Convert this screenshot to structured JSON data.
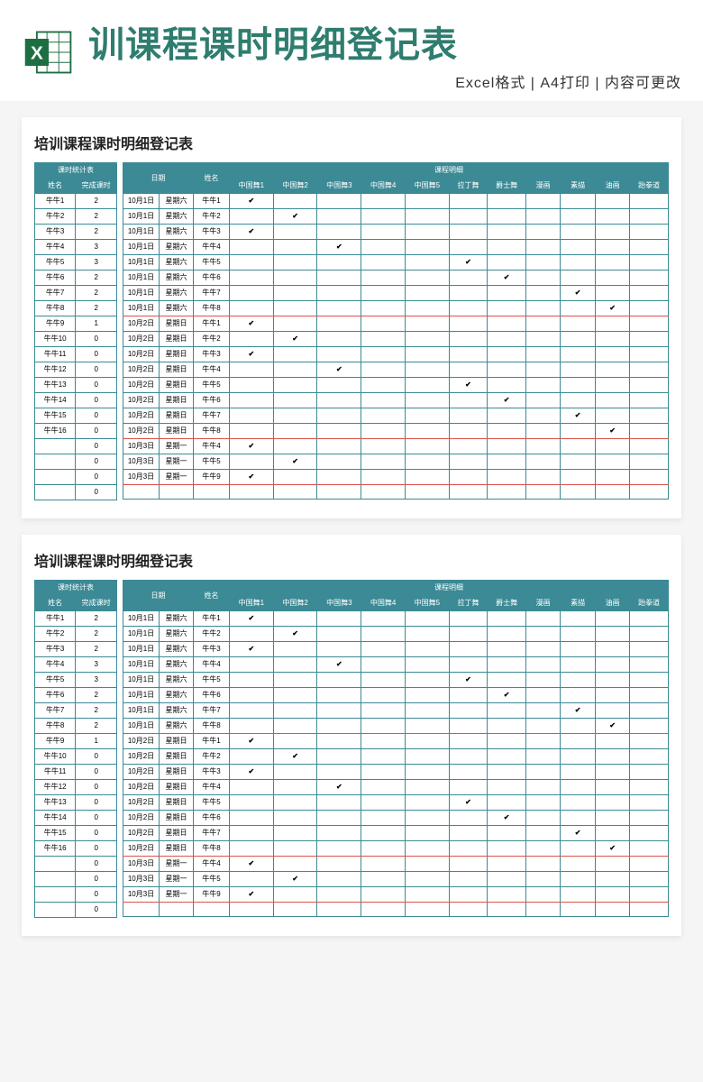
{
  "colors": {
    "header_bg": "#3b8a95",
    "header_fg": "#ffffff",
    "border": "#3b8a95",
    "accent_border": "#d9534f",
    "panel_bg": "#ffffff",
    "page_bg": "#f5f5f5",
    "title_color": "#2f7d6f",
    "excel_green": "#1d6f42"
  },
  "header": {
    "title": "训课程课时明细登记表",
    "subtitle": "Excel格式 | A4打印 | 内容可更改"
  },
  "sheet_title": "培训课程课时明细登记表",
  "summary": {
    "group_title": "课时统计表",
    "col_name": "姓名",
    "col_count": "完成课时",
    "rows": [
      {
        "name": "牛牛1",
        "count": "2"
      },
      {
        "name": "牛牛2",
        "count": "2"
      },
      {
        "name": "牛牛3",
        "count": "2"
      },
      {
        "name": "牛牛4",
        "count": "3"
      },
      {
        "name": "牛牛5",
        "count": "3"
      },
      {
        "name": "牛牛6",
        "count": "2"
      },
      {
        "name": "牛牛7",
        "count": "2"
      },
      {
        "name": "牛牛8",
        "count": "2"
      },
      {
        "name": "牛牛9",
        "count": "1"
      },
      {
        "name": "牛牛10",
        "count": "0"
      },
      {
        "name": "牛牛11",
        "count": "0"
      },
      {
        "name": "牛牛12",
        "count": "0"
      },
      {
        "name": "牛牛13",
        "count": "0"
      },
      {
        "name": "牛牛14",
        "count": "0"
      },
      {
        "name": "牛牛15",
        "count": "0"
      },
      {
        "name": "牛牛16",
        "count": "0"
      },
      {
        "name": "",
        "count": "0"
      },
      {
        "name": "",
        "count": "0"
      },
      {
        "name": "",
        "count": "0"
      },
      {
        "name": "",
        "count": "0"
      }
    ]
  },
  "detail": {
    "col_date": "日期",
    "col_name": "姓名",
    "group_courses": "课程明细",
    "courses": [
      "中国舞1",
      "中国舞2",
      "中国舞3",
      "中国舞4",
      "中国舞5",
      "拉丁舞",
      "爵士舞",
      "漫画",
      "素描",
      "油画",
      "跆拳道"
    ],
    "rows": [
      {
        "date": "10月1日",
        "day": "星期六",
        "name": "牛牛1",
        "marks": [
          true,
          false,
          false,
          false,
          false,
          false,
          false,
          false,
          false,
          false,
          false
        ],
        "red": false
      },
      {
        "date": "10月1日",
        "day": "星期六",
        "name": "牛牛2",
        "marks": [
          false,
          true,
          false,
          false,
          false,
          false,
          false,
          false,
          false,
          false,
          false
        ],
        "red": false
      },
      {
        "date": "10月1日",
        "day": "星期六",
        "name": "牛牛3",
        "marks": [
          true,
          false,
          false,
          false,
          false,
          false,
          false,
          false,
          false,
          false,
          false
        ],
        "red": false
      },
      {
        "date": "10月1日",
        "day": "星期六",
        "name": "牛牛4",
        "marks": [
          false,
          false,
          true,
          false,
          false,
          false,
          false,
          false,
          false,
          false,
          false
        ],
        "red": false
      },
      {
        "date": "10月1日",
        "day": "星期六",
        "name": "牛牛5",
        "marks": [
          false,
          false,
          false,
          false,
          false,
          true,
          false,
          false,
          false,
          false,
          false
        ],
        "red": false
      },
      {
        "date": "10月1日",
        "day": "星期六",
        "name": "牛牛6",
        "marks": [
          false,
          false,
          false,
          false,
          false,
          false,
          true,
          false,
          false,
          false,
          false
        ],
        "red": false
      },
      {
        "date": "10月1日",
        "day": "星期六",
        "name": "牛牛7",
        "marks": [
          false,
          false,
          false,
          false,
          false,
          false,
          false,
          false,
          true,
          false,
          false
        ],
        "red": false
      },
      {
        "date": "10月1日",
        "day": "星期六",
        "name": "牛牛8",
        "marks": [
          false,
          false,
          false,
          false,
          false,
          false,
          false,
          false,
          false,
          true,
          false
        ],
        "red": true
      },
      {
        "date": "10月2日",
        "day": "星期日",
        "name": "牛牛1",
        "marks": [
          true,
          false,
          false,
          false,
          false,
          false,
          false,
          false,
          false,
          false,
          false
        ],
        "red": false
      },
      {
        "date": "10月2日",
        "day": "星期日",
        "name": "牛牛2",
        "marks": [
          false,
          true,
          false,
          false,
          false,
          false,
          false,
          false,
          false,
          false,
          false
        ],
        "red": false
      },
      {
        "date": "10月2日",
        "day": "星期日",
        "name": "牛牛3",
        "marks": [
          true,
          false,
          false,
          false,
          false,
          false,
          false,
          false,
          false,
          false,
          false
        ],
        "red": false
      },
      {
        "date": "10月2日",
        "day": "星期日",
        "name": "牛牛4",
        "marks": [
          false,
          false,
          true,
          false,
          false,
          false,
          false,
          false,
          false,
          false,
          false
        ],
        "red": false
      },
      {
        "date": "10月2日",
        "day": "星期日",
        "name": "牛牛5",
        "marks": [
          false,
          false,
          false,
          false,
          false,
          true,
          false,
          false,
          false,
          false,
          false
        ],
        "red": false
      },
      {
        "date": "10月2日",
        "day": "星期日",
        "name": "牛牛6",
        "marks": [
          false,
          false,
          false,
          false,
          false,
          false,
          true,
          false,
          false,
          false,
          false
        ],
        "red": false
      },
      {
        "date": "10月2日",
        "day": "星期日",
        "name": "牛牛7",
        "marks": [
          false,
          false,
          false,
          false,
          false,
          false,
          false,
          false,
          true,
          false,
          false
        ],
        "red": false
      },
      {
        "date": "10月2日",
        "day": "星期日",
        "name": "牛牛8",
        "marks": [
          false,
          false,
          false,
          false,
          false,
          false,
          false,
          false,
          false,
          true,
          false
        ],
        "red": true
      },
      {
        "date": "10月3日",
        "day": "星期一",
        "name": "牛牛4",
        "marks": [
          true,
          false,
          false,
          false,
          false,
          false,
          false,
          false,
          false,
          false,
          false
        ],
        "red": false
      },
      {
        "date": "10月3日",
        "day": "星期一",
        "name": "牛牛5",
        "marks": [
          false,
          true,
          false,
          false,
          false,
          false,
          false,
          false,
          false,
          false,
          false
        ],
        "red": false
      },
      {
        "date": "10月3日",
        "day": "星期一",
        "name": "牛牛9",
        "marks": [
          true,
          false,
          false,
          false,
          false,
          false,
          false,
          false,
          false,
          false,
          false
        ],
        "red": true
      },
      {
        "date": "",
        "day": "",
        "name": "",
        "marks": [
          false,
          false,
          false,
          false,
          false,
          false,
          false,
          false,
          false,
          false,
          false
        ],
        "red": false
      }
    ]
  },
  "checkmark": "✔"
}
